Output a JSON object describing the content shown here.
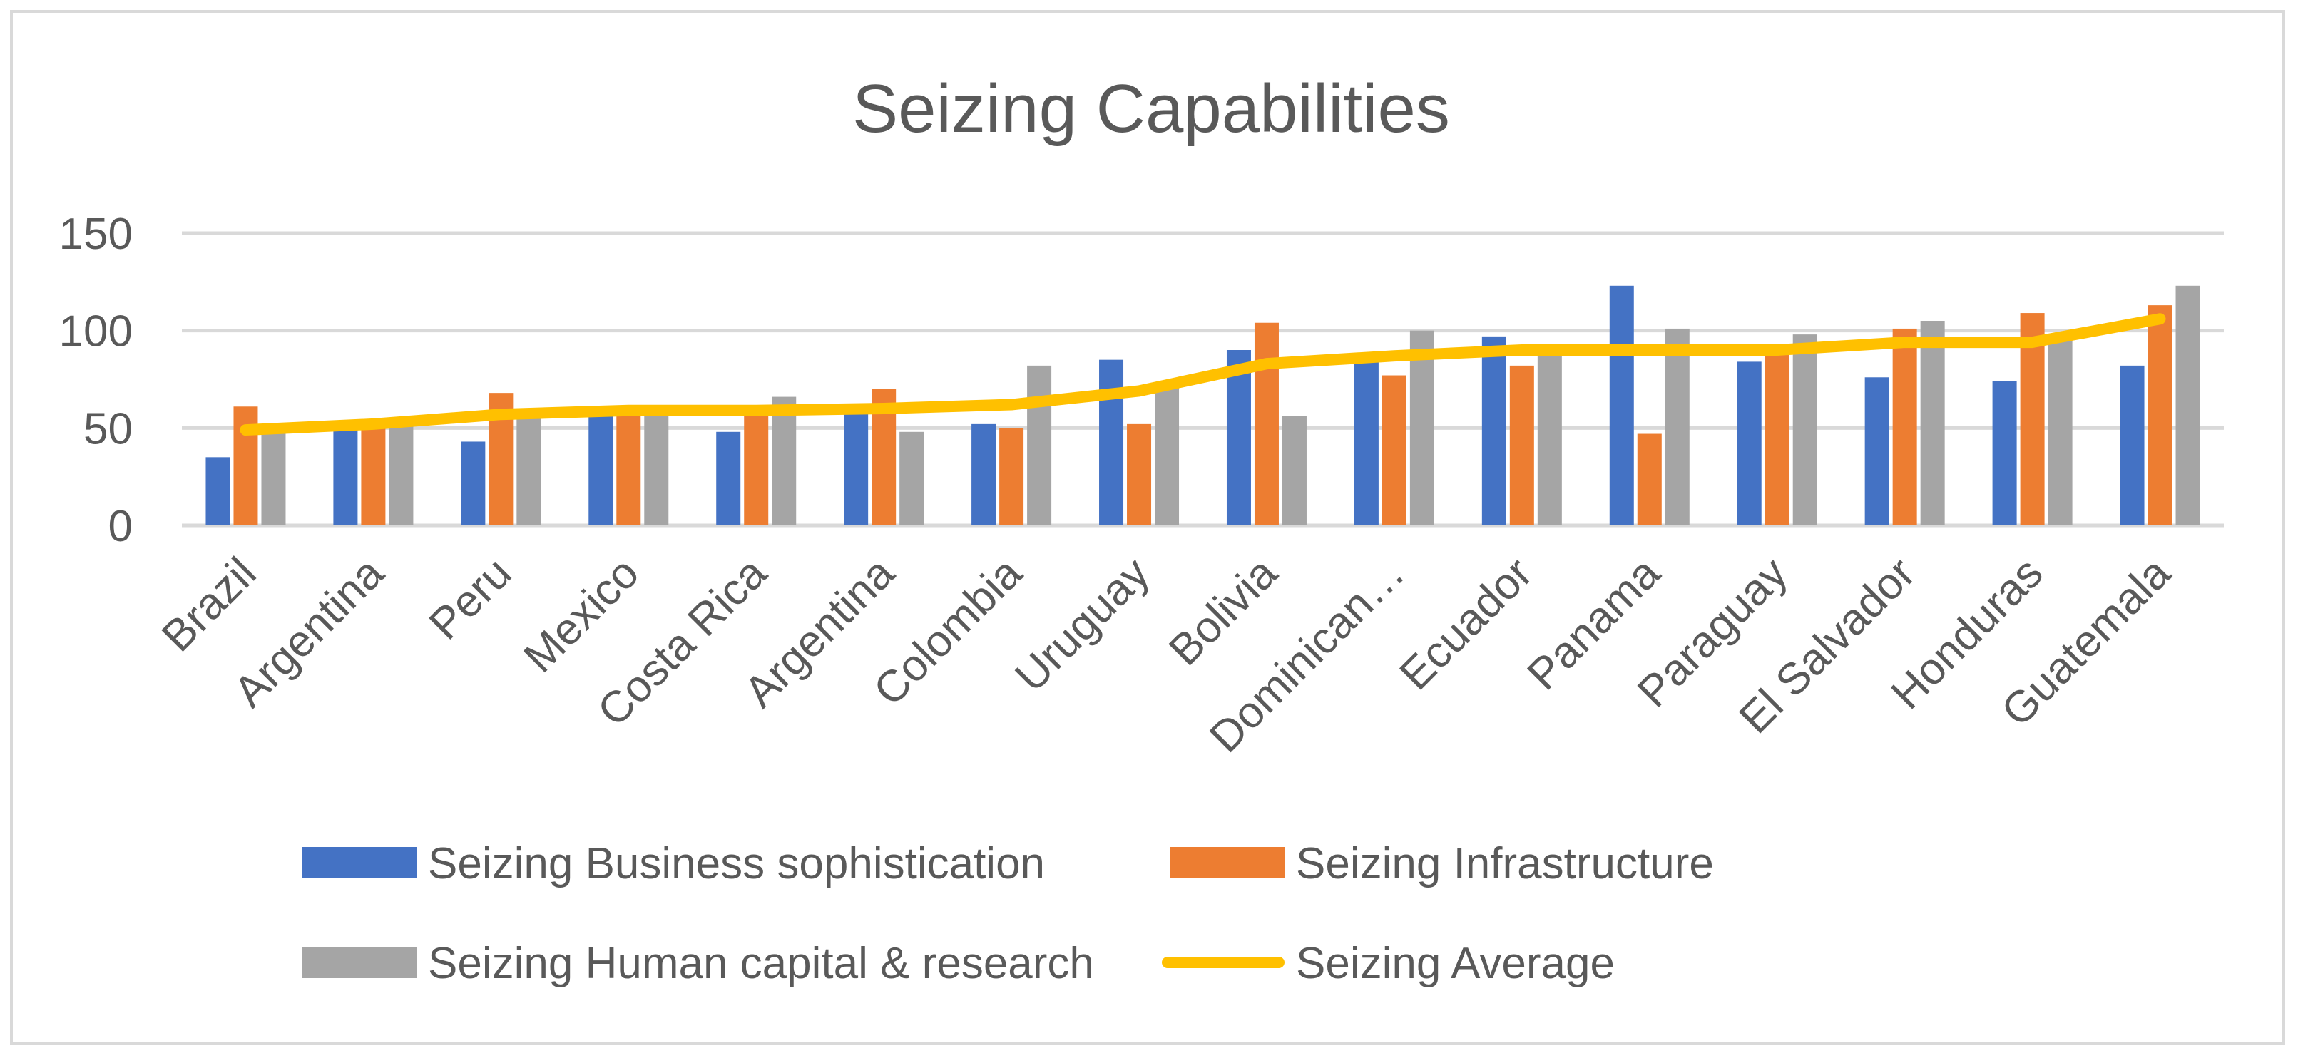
{
  "chart_data": {
    "type": "bar",
    "title": "Seizing Capabilities",
    "xlabel": "",
    "ylabel": "",
    "ylim": [
      0,
      150
    ],
    "yticks": [
      0,
      50,
      100,
      150
    ],
    "grid": true,
    "legend_position": "bottom",
    "categories": [
      "Brazil",
      "Argentina",
      "Peru",
      "Mexico",
      "Costa Rica",
      "Argentina",
      "Colombia",
      "Uruguay",
      "Bolivia",
      "Dominican…",
      "Ecuador",
      "Panama",
      "Paraguay",
      "El Salvador",
      "Honduras",
      "Guatemala"
    ],
    "series": [
      {
        "name": "Seizing Business sophistication",
        "kind": "bar",
        "color": "#4472c4",
        "values": [
          35,
          50,
          43,
          56,
          48,
          58,
          52,
          85,
          90,
          86,
          97,
          123,
          84,
          76,
          74,
          82
        ]
      },
      {
        "name": "Seizing Infrastructure",
        "kind": "bar",
        "color": "#ed7d31",
        "values": [
          61,
          50,
          68,
          58,
          58,
          70,
          50,
          52,
          104,
          77,
          82,
          47,
          88,
          101,
          109,
          113
        ]
      },
      {
        "name": "Seizing Human capital & research",
        "kind": "bar",
        "color": "#a5a5a5",
        "values": [
          50,
          52,
          58,
          58,
          66,
          48,
          82,
          72,
          56,
          100,
          90,
          101,
          98,
          105,
          98,
          123
        ]
      },
      {
        "name": "Seizing Average",
        "kind": "line",
        "color": "#ffc000",
        "values": [
          49,
          52,
          57,
          59,
          59,
          60,
          62,
          69,
          83,
          87,
          90,
          90,
          90,
          94,
          94,
          106
        ]
      }
    ]
  }
}
